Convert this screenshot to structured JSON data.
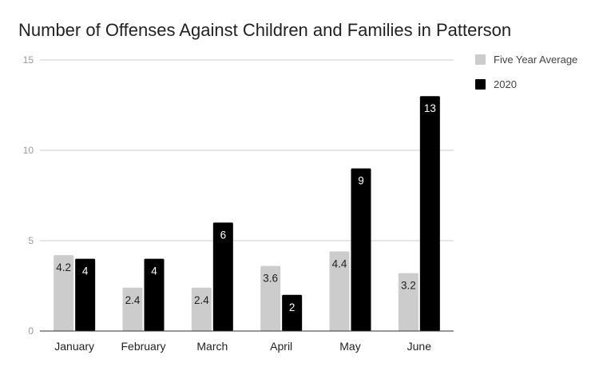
{
  "chart_data": {
    "type": "bar",
    "title": "Number of Offenses Against Children and Families in Patterson",
    "xlabel": "",
    "ylabel": "",
    "categories": [
      "January",
      "February",
      "March",
      "April",
      "May",
      "June"
    ],
    "series": [
      {
        "name": "Five Year Average",
        "values": [
          4.2,
          2.4,
          2.4,
          3.6,
          4.4,
          3.2
        ],
        "color": "#cccccc",
        "label_color": "#222222"
      },
      {
        "name": "2020",
        "values": [
          4,
          4,
          6,
          2,
          9,
          13
        ],
        "color": "#000000",
        "label_color": "#ffffff"
      }
    ],
    "ylim": [
      0,
      15
    ],
    "yticks": [
      0,
      5,
      10,
      15
    ],
    "grid": true,
    "legend_position": "right"
  }
}
